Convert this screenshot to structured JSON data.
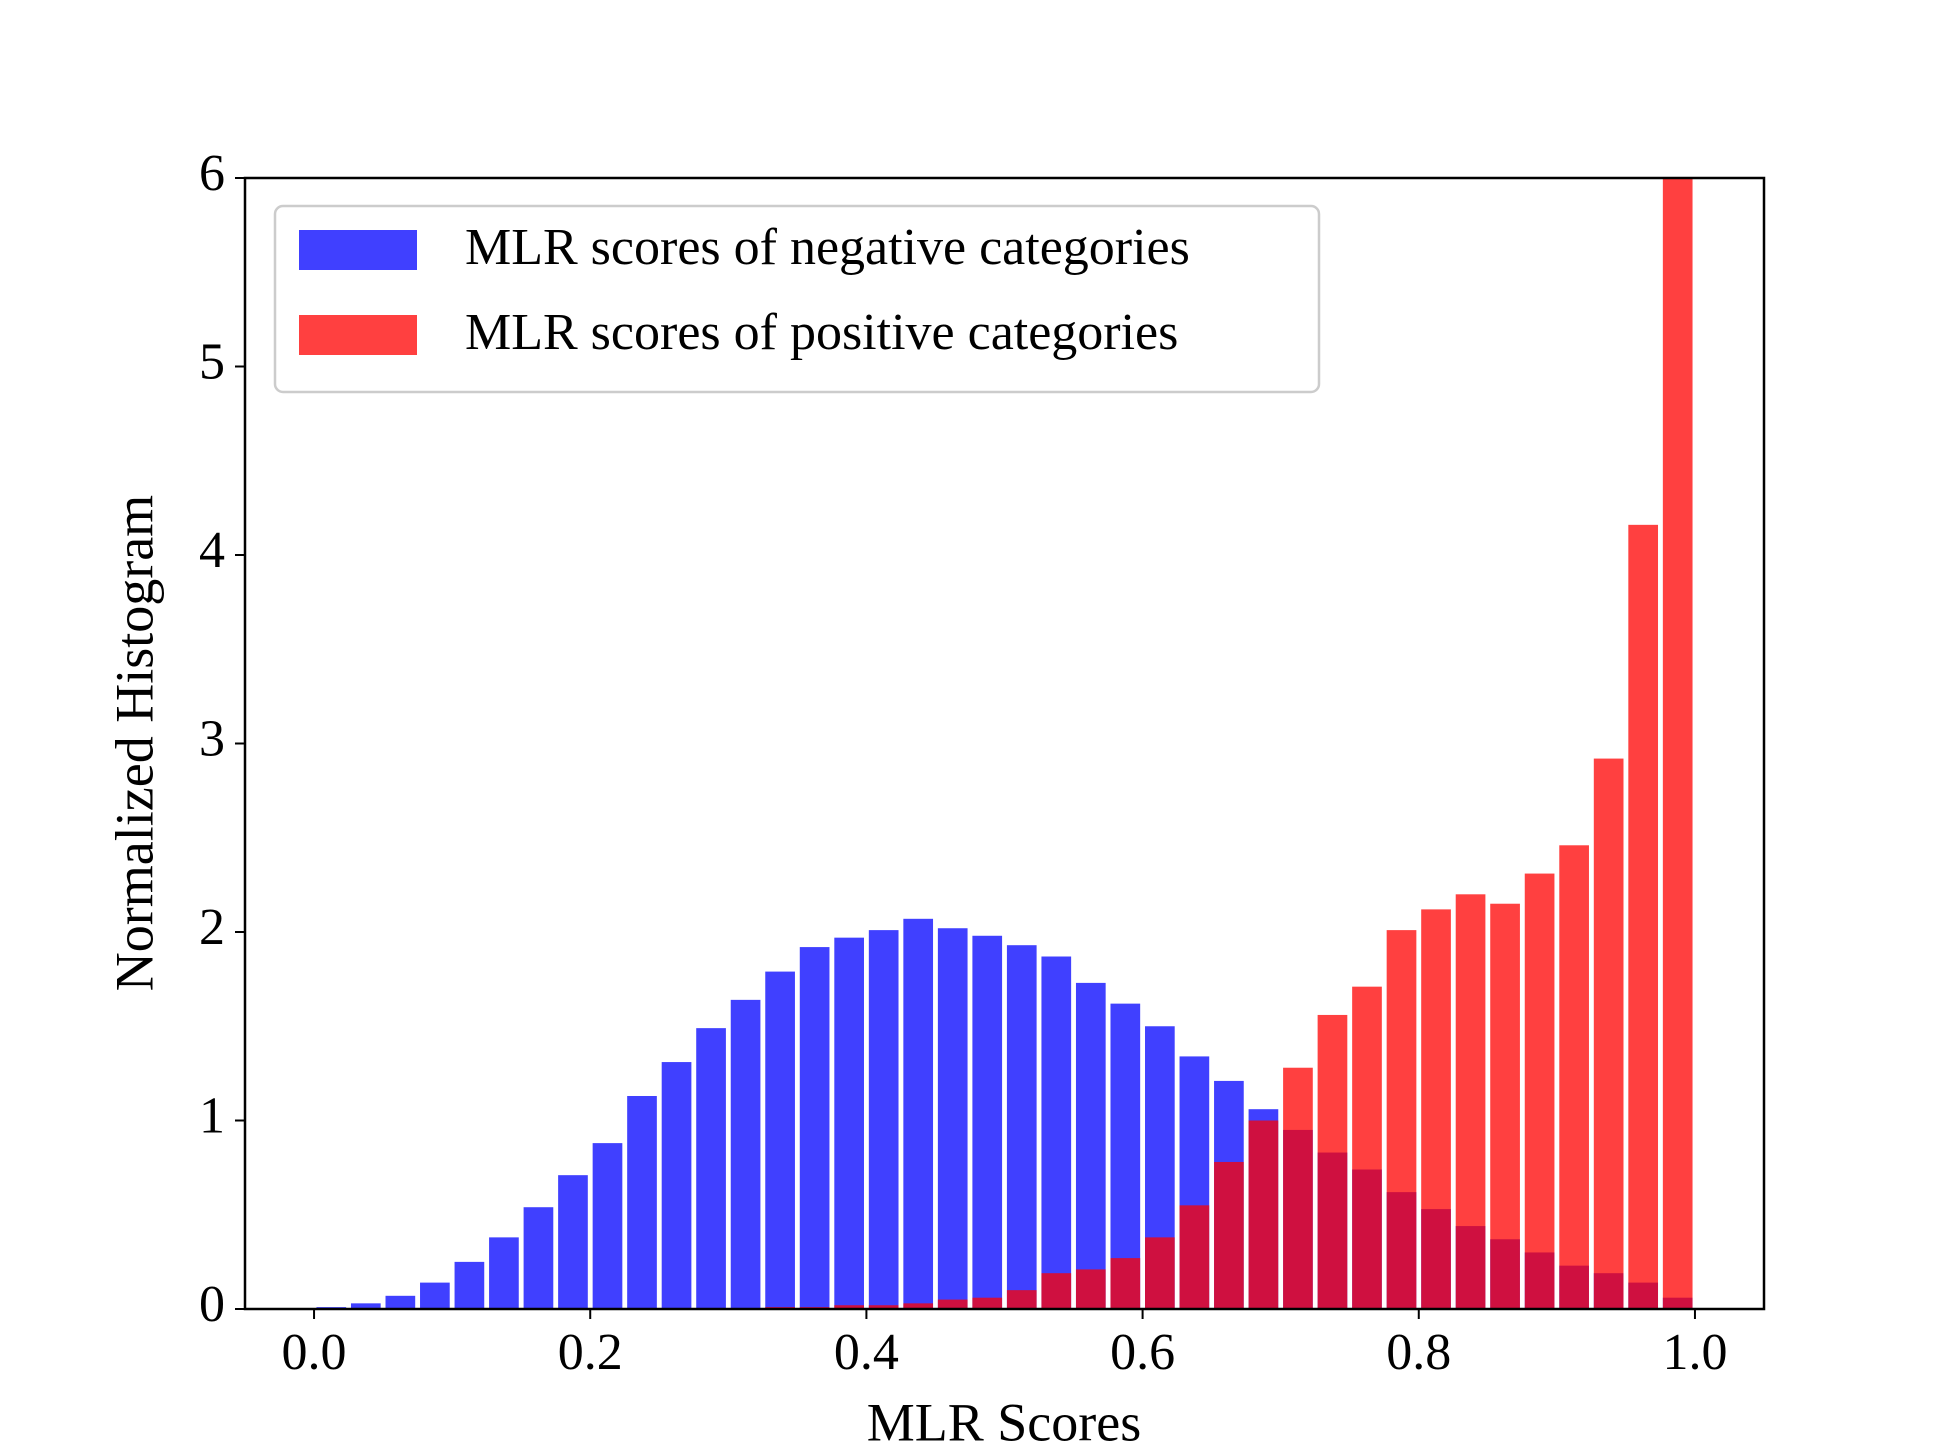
{
  "chart_data": {
    "type": "histogram",
    "x_label": "MLR Scores",
    "y_label": "Normalized Histogram",
    "bins": [
      0,
      0.025,
      0.05,
      0.075,
      0.1,
      0.125,
      0.15,
      0.175,
      0.2,
      0.225,
      0.25,
      0.275,
      0.3,
      0.325,
      0.35,
      0.375,
      0.4,
      0.425,
      0.45,
      0.475,
      0.5,
      0.525,
      0.55,
      0.575,
      0.6,
      0.625,
      0.65,
      0.675,
      0.7,
      0.725,
      0.75,
      0.775,
      0.8,
      0.825,
      0.85,
      0.875,
      0.9,
      0.925,
      0.95,
      0.975,
      1.0
    ],
    "series": [
      {
        "name": "MLR scores of negative categories",
        "color": "#0000ff",
        "alpha": 0.75,
        "values": [
          0.01,
          0.03,
          0.07,
          0.14,
          0.25,
          0.38,
          0.54,
          0.71,
          0.88,
          1.13,
          1.31,
          1.49,
          1.64,
          1.79,
          1.92,
          1.97,
          2.01,
          2.07,
          2.02,
          1.98,
          1.93,
          1.87,
          1.73,
          1.62,
          1.5,
          1.34,
          1.21,
          1.06,
          0.95,
          0.83,
          0.74,
          0.62,
          0.53,
          0.44,
          0.37,
          0.3,
          0.23,
          0.19,
          0.14,
          0.06
        ]
      },
      {
        "name": "MLR scores of positive categories",
        "color": "#ff0000",
        "alpha": 0.75,
        "values": [
          0,
          0,
          0,
          0,
          0,
          0,
          0,
          0,
          0,
          0,
          0,
          0,
          0,
          0.01,
          0.01,
          0.02,
          0.02,
          0.03,
          0.05,
          0.06,
          0.1,
          0.19,
          0.21,
          0.27,
          0.38,
          0.55,
          0.78,
          1.0,
          1.28,
          1.56,
          1.71,
          2.01,
          2.12,
          2.2,
          2.15,
          2.31,
          2.46,
          2.92,
          4.16,
          6.0
        ]
      }
    ],
    "xlim": [
      -0.05,
      1.05
    ],
    "ylim": [
      0,
      6
    ],
    "xticks": [
      {
        "value": 0,
        "label": "0.0"
      },
      0.2,
      0.4,
      0.6,
      0.8,
      {
        "value": 1,
        "label": "1.0"
      }
    ],
    "yticks": [
      0,
      1,
      2,
      3,
      4,
      5,
      6
    ],
    "legend": "upper left"
  }
}
